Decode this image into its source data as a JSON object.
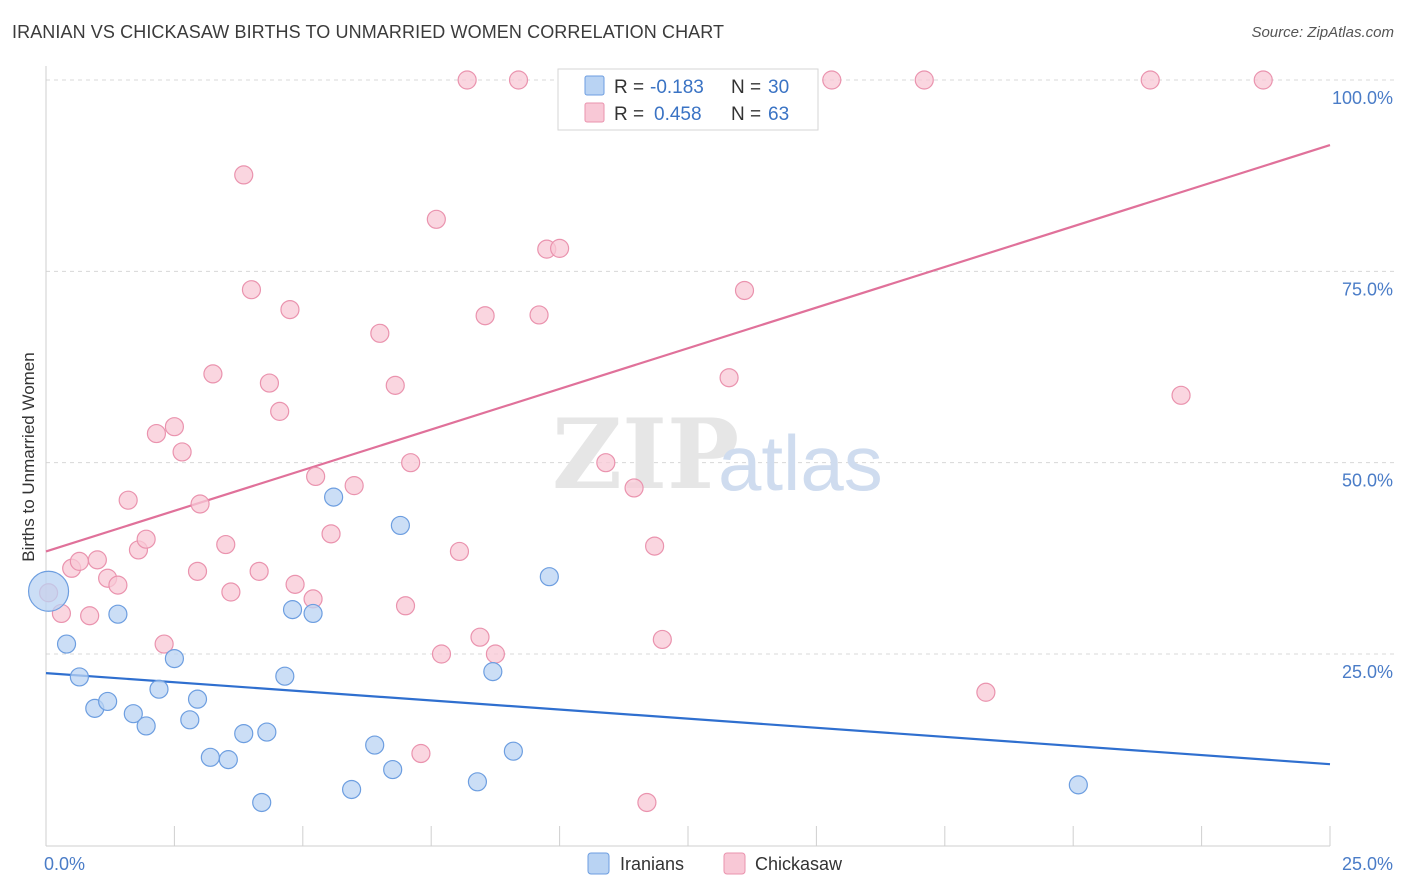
{
  "title": "IRANIAN VS CHICKASAW BIRTHS TO UNMARRIED WOMEN CORRELATION CHART",
  "source": "Source: ZipAtlas.com",
  "watermark": {
    "zip": "ZIP",
    "atlas": "atlas"
  },
  "colors": {
    "blue_fill": "#b9d3f3",
    "blue_stroke": "#6d9ee0",
    "blue_line": "#2f6fcf",
    "pink_fill": "#f8c8d6",
    "pink_stroke": "#ea93ae",
    "pink_line": "#e0719a",
    "axis_text": "#4a7cc7",
    "grid": "#d8d8d8"
  },
  "legend": {
    "rows": [
      {
        "r_label": "R = ",
        "r_value": "-0.183",
        "n_label": "N = ",
        "n_value": "30"
      },
      {
        "r_label": "R = ",
        "r_value": "0.458",
        "n_label": "N = ",
        "n_value": "63"
      }
    ]
  },
  "bottom_legend": [
    "Iranians",
    "Chickasaw"
  ],
  "chart_data": {
    "type": "scatter",
    "title": "IRANIAN VS CHICKASAW BIRTHS TO UNMARRIED WOMEN CORRELATION CHART",
    "xlabel": "",
    "ylabel": "Births to Unmarried Women",
    "xlim": [
      0,
      25
    ],
    "ylim": [
      0,
      102
    ],
    "x_ticks": [
      "0.0%",
      "25.0%"
    ],
    "y_ticks": [
      {
        "value": 25,
        "label": "25.0%"
      },
      {
        "value": 50,
        "label": "50.0%"
      },
      {
        "value": 75,
        "label": "75.0%"
      },
      {
        "value": 100,
        "label": "100.0%"
      }
    ],
    "grid": true,
    "legend_position": "top-center",
    "series": [
      {
        "name": "Iranians",
        "r": -0.183,
        "n": 30,
        "trend": {
          "x": [
            0,
            25
          ],
          "y": [
            22.5,
            10.6
          ]
        },
        "points": [
          {
            "x": 0.05,
            "y": 33.2,
            "big": true
          },
          {
            "x": 0.4,
            "y": 26.3
          },
          {
            "x": 0.65,
            "y": 22.0
          },
          {
            "x": 0.95,
            "y": 17.9
          },
          {
            "x": 1.2,
            "y": 18.8
          },
          {
            "x": 1.4,
            "y": 30.2
          },
          {
            "x": 1.7,
            "y": 17.2
          },
          {
            "x": 1.95,
            "y": 15.6
          },
          {
            "x": 2.2,
            "y": 20.4
          },
          {
            "x": 2.5,
            "y": 24.4
          },
          {
            "x": 2.8,
            "y": 16.4
          },
          {
            "x": 2.95,
            "y": 19.1
          },
          {
            "x": 3.2,
            "y": 11.5
          },
          {
            "x": 3.55,
            "y": 11.2
          },
          {
            "x": 3.85,
            "y": 14.6
          },
          {
            "x": 4.2,
            "y": 5.6
          },
          {
            "x": 4.3,
            "y": 14.8
          },
          {
            "x": 4.65,
            "y": 22.1
          },
          {
            "x": 4.8,
            "y": 30.8
          },
          {
            "x": 5.2,
            "y": 30.3
          },
          {
            "x": 5.6,
            "y": 45.5
          },
          {
            "x": 5.95,
            "y": 7.3
          },
          {
            "x": 6.4,
            "y": 13.1
          },
          {
            "x": 6.75,
            "y": 9.9
          },
          {
            "x": 6.9,
            "y": 41.8
          },
          {
            "x": 8.4,
            "y": 8.3
          },
          {
            "x": 8.7,
            "y": 22.7
          },
          {
            "x": 9.1,
            "y": 12.3
          },
          {
            "x": 9.8,
            "y": 35.1
          },
          {
            "x": 20.1,
            "y": 7.9
          }
        ]
      },
      {
        "name": "Chickasaw",
        "r": 0.458,
        "n": 63,
        "trend": {
          "x": [
            0,
            25
          ],
          "y": [
            38.4,
            91.5
          ]
        },
        "points": [
          {
            "x": 0.05,
            "y": 33.0
          },
          {
            "x": 0.3,
            "y": 30.3
          },
          {
            "x": 0.5,
            "y": 36.2
          },
          {
            "x": 0.65,
            "y": 37.1
          },
          {
            "x": 0.85,
            "y": 30.0
          },
          {
            "x": 1.0,
            "y": 37.3
          },
          {
            "x": 1.2,
            "y": 34.9
          },
          {
            "x": 1.4,
            "y": 34.0
          },
          {
            "x": 1.6,
            "y": 45.1
          },
          {
            "x": 1.8,
            "y": 38.6
          },
          {
            "x": 1.95,
            "y": 40.0
          },
          {
            "x": 2.15,
            "y": 53.8
          },
          {
            "x": 2.3,
            "y": 26.3
          },
          {
            "x": 2.5,
            "y": 54.7
          },
          {
            "x": 2.65,
            "y": 51.4
          },
          {
            "x": 2.95,
            "y": 35.8
          },
          {
            "x": 3.0,
            "y": 44.6
          },
          {
            "x": 3.25,
            "y": 61.6
          },
          {
            "x": 3.5,
            "y": 39.3
          },
          {
            "x": 3.6,
            "y": 33.1
          },
          {
            "x": 3.85,
            "y": 87.6
          },
          {
            "x": 4.0,
            "y": 72.6
          },
          {
            "x": 4.15,
            "y": 35.8
          },
          {
            "x": 4.35,
            "y": 60.4
          },
          {
            "x": 4.55,
            "y": 56.7
          },
          {
            "x": 4.75,
            "y": 70.0
          },
          {
            "x": 4.85,
            "y": 34.1
          },
          {
            "x": 5.2,
            "y": 32.2
          },
          {
            "x": 5.25,
            "y": 48.2
          },
          {
            "x": 5.55,
            "y": 40.7
          },
          {
            "x": 6.0,
            "y": 47.0
          },
          {
            "x": 6.5,
            "y": 66.9
          },
          {
            "x": 6.8,
            "y": 60.1
          },
          {
            "x": 7.0,
            "y": 31.3
          },
          {
            "x": 7.1,
            "y": 50.0
          },
          {
            "x": 7.3,
            "y": 12.0
          },
          {
            "x": 7.6,
            "y": 81.8
          },
          {
            "x": 7.7,
            "y": 25.0
          },
          {
            "x": 8.05,
            "y": 38.4
          },
          {
            "x": 8.2,
            "y": 100.0
          },
          {
            "x": 8.45,
            "y": 27.2
          },
          {
            "x": 8.55,
            "y": 69.2
          },
          {
            "x": 8.75,
            "y": 25.0
          },
          {
            "x": 9.2,
            "y": 100.0
          },
          {
            "x": 9.6,
            "y": 69.3
          },
          {
            "x": 9.75,
            "y": 77.9
          },
          {
            "x": 10.0,
            "y": 78.0
          },
          {
            "x": 10.9,
            "y": 50.0
          },
          {
            "x": 11.3,
            "y": 100.0
          },
          {
            "x": 11.45,
            "y": 46.7
          },
          {
            "x": 11.7,
            "y": 5.6
          },
          {
            "x": 11.85,
            "y": 39.1
          },
          {
            "x": 12.0,
            "y": 26.9
          },
          {
            "x": 13.3,
            "y": 61.1
          },
          {
            "x": 13.6,
            "y": 72.5
          },
          {
            "x": 14.1,
            "y": 100.0
          },
          {
            "x": 14.8,
            "y": 100.0
          },
          {
            "x": 15.3,
            "y": 100.0
          },
          {
            "x": 17.1,
            "y": 100.0
          },
          {
            "x": 18.3,
            "y": 20.0
          },
          {
            "x": 21.5,
            "y": 100.0
          },
          {
            "x": 22.1,
            "y": 58.8
          },
          {
            "x": 23.7,
            "y": 100.0
          }
        ]
      }
    ]
  }
}
